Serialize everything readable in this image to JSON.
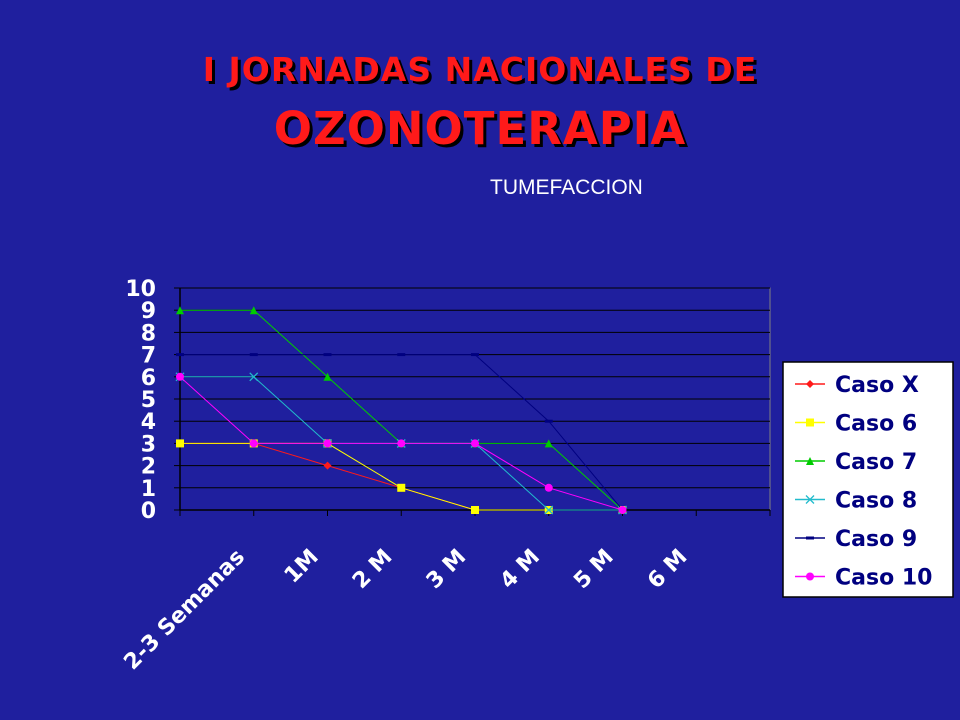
{
  "slide": {
    "title_line1": "I JORNADAS NACIONALES DE",
    "title_line2": "OZONOTERAPIA"
  },
  "chart_data": {
    "type": "line",
    "title": "TUMEFACCION",
    "categories": [
      "2-3 Semanas",
      "1M",
      "2 M",
      "3 M",
      "4 M",
      "5 M",
      "6 M"
    ],
    "ylim": [
      0,
      10
    ],
    "yticks": [
      0,
      1,
      2,
      3,
      4,
      5,
      6,
      7,
      8,
      9,
      10
    ],
    "grid": true,
    "legend_position": "right",
    "series": [
      {
        "name": "Caso X",
        "color": "#ff1a1a",
        "marker": "diamond",
        "values": [
          3,
          3,
          2,
          1,
          0,
          0,
          0
        ]
      },
      {
        "name": "Caso 6",
        "color": "#ffff00",
        "marker": "square",
        "values": [
          3,
          3,
          3,
          1,
          0,
          0,
          0
        ]
      },
      {
        "name": "Caso 7",
        "color": "#00cc00",
        "marker": "triangle",
        "values": [
          9,
          9,
          6,
          3,
          3,
          3,
          0
        ]
      },
      {
        "name": "Caso 8",
        "color": "#22bbcc",
        "marker": "x",
        "values": [
          6,
          6,
          3,
          3,
          3,
          0,
          0
        ]
      },
      {
        "name": "Caso 9",
        "color": "#000080",
        "marker": "dash",
        "values": [
          7,
          7,
          7,
          7,
          7,
          4,
          0
        ]
      },
      {
        "name": "Caso 10",
        "color": "#ff00ff",
        "marker": "circle",
        "values": [
          6,
          3,
          3,
          3,
          3,
          1,
          0
        ]
      }
    ]
  }
}
